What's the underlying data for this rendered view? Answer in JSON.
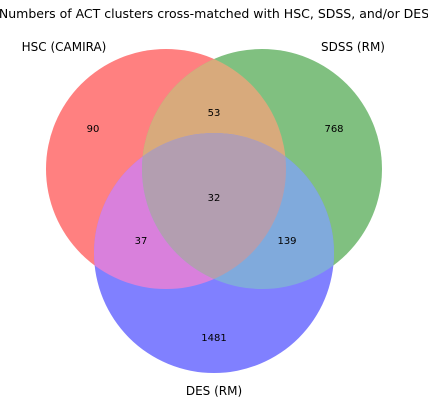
{
  "title": "Numbers of ACT clusters cross-matched with HSC, SDSS, and/or DES",
  "sets": [
    {
      "name": "HSC (CAMIRA)",
      "color": "#ff8080"
    },
    {
      "name": "SDSS (RM)",
      "color": "#80c080"
    },
    {
      "name": "DES (RM)",
      "color": "#8080ff"
    }
  ],
  "regions": {
    "hsc_only": "90",
    "sdss_only": "768",
    "des_only": "1481",
    "hsc_sdss": "53",
    "hsc_des": "37",
    "sdss_des": "139",
    "all_three": "32"
  },
  "region_colors": {
    "hsc_sdss": "#d8aa7c",
    "hsc_des": "#d980dc",
    "sdss_des": "#80aadc",
    "all_three": "#b39eb0"
  }
}
